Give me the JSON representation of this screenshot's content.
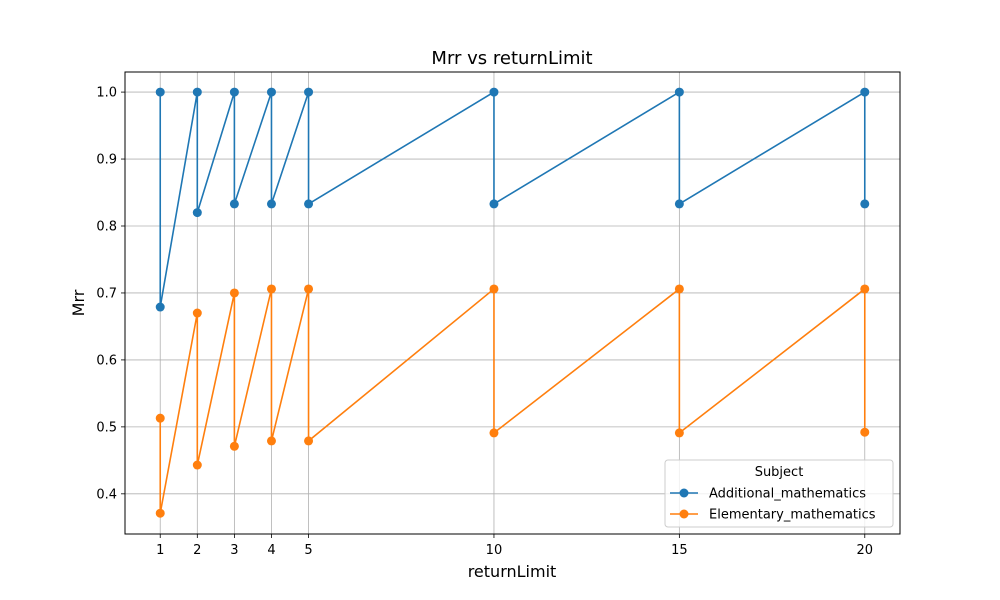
{
  "chart_data": {
    "type": "line",
    "title": "Mrr vs returnLimit",
    "xlabel": "returnLimit",
    "ylabel": "Mrr",
    "xlim": [
      0.05,
      20.95
    ],
    "ylim": [
      0.34,
      1.03
    ],
    "xticks": [
      1,
      2,
      3,
      4,
      5,
      10,
      15,
      20
    ],
    "yticks": [
      0.4,
      0.5,
      0.6,
      0.7,
      0.8,
      0.9,
      1.0
    ],
    "grid": true,
    "legend": {
      "title": "Subject",
      "placement": "lower-right"
    },
    "series": [
      {
        "name": "Additional_mathematics",
        "color": "#1f77b4",
        "points": [
          [
            1,
            1.0
          ],
          [
            1,
            0.679
          ],
          [
            2,
            1.0
          ],
          [
            2,
            0.82
          ],
          [
            3,
            1.0
          ],
          [
            3,
            0.833
          ],
          [
            4,
            1.0
          ],
          [
            4,
            0.833
          ],
          [
            5,
            1.0
          ],
          [
            5,
            0.833
          ],
          [
            10,
            1.0
          ],
          [
            10,
            0.833
          ],
          [
            15,
            1.0
          ],
          [
            15,
            0.833
          ],
          [
            20,
            1.0
          ],
          [
            20,
            0.833
          ]
        ]
      },
      {
        "name": "Elementary_mathematics",
        "color": "#ff7f0e",
        "points": [
          [
            1,
            0.513
          ],
          [
            1,
            0.371
          ],
          [
            2,
            0.67
          ],
          [
            2,
            0.443
          ],
          [
            3,
            0.7
          ],
          [
            3,
            0.471
          ],
          [
            4,
            0.706
          ],
          [
            4,
            0.479
          ],
          [
            5,
            0.706
          ],
          [
            5,
            0.479
          ],
          [
            10,
            0.706
          ],
          [
            10,
            0.491
          ],
          [
            15,
            0.706
          ],
          [
            15,
            0.491
          ],
          [
            20,
            0.706
          ],
          [
            20,
            0.492
          ]
        ]
      }
    ]
  }
}
